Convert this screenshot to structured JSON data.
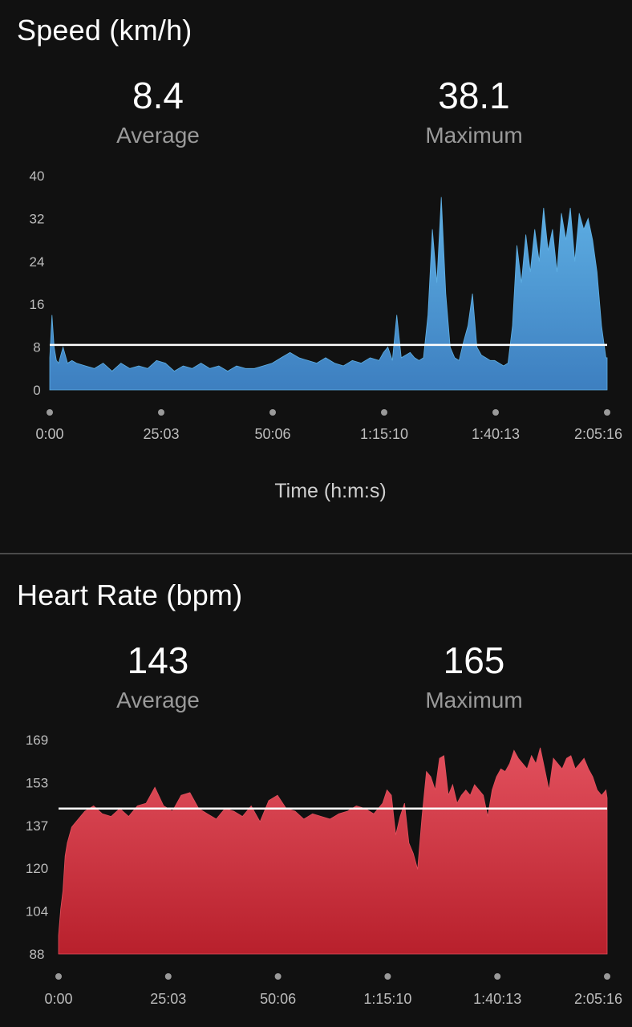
{
  "speed": {
    "title": "Speed (km/h)",
    "average_value": "8.4",
    "average_label": "Average",
    "maximum_value": "38.1",
    "maximum_label": "Maximum",
    "xlabel": "Time (h:m:s)"
  },
  "heart_rate": {
    "title": "Heart Rate (bpm)",
    "average_value": "143",
    "average_label": "Average",
    "maximum_value": "165",
    "maximum_label": "Maximum"
  },
  "chart_data": [
    {
      "type": "area",
      "title": "Speed (km/h)",
      "xlabel": "Time (h:m:s)",
      "ylabel": "",
      "x_unit": "minutes",
      "xlim": [
        0,
        125.27
      ],
      "ylim": [
        0,
        40
      ],
      "y_ticks": [
        "0",
        "8",
        "16",
        "24",
        "32",
        "40"
      ],
      "x_tick_labels": [
        "0:00",
        "25:03",
        "50:06",
        "1:15:10",
        "1:40:13",
        "2:05:16"
      ],
      "average_line": 8.4,
      "color": "#5aa7dc",
      "grid": false,
      "legend": "none",
      "x": [
        0,
        0.5,
        1,
        1.5,
        2,
        3,
        4,
        5,
        6,
        8,
        10,
        12,
        14,
        16,
        18,
        20,
        22,
        24,
        26,
        28,
        30,
        32,
        34,
        36,
        38,
        40,
        42,
        44,
        46,
        48,
        50,
        52,
        54,
        56,
        58,
        60,
        62,
        64,
        66,
        68,
        70,
        72,
        74,
        75,
        76,
        77,
        78,
        79,
        80,
        81,
        82,
        83,
        84,
        85,
        86,
        87,
        88,
        89,
        90,
        91,
        92,
        93,
        94,
        95,
        96,
        97,
        98,
        99,
        100,
        101,
        102,
        103,
        104,
        105,
        106,
        107,
        108,
        109,
        110,
        111,
        112,
        113,
        114,
        115,
        116,
        117,
        118,
        119,
        120,
        121,
        122,
        123,
        124,
        125,
        125.27
      ],
      "values": [
        6,
        14,
        8,
        5.5,
        5,
        8,
        5,
        5.5,
        5,
        4.5,
        4,
        5,
        3.5,
        5,
        4,
        4.5,
        4,
        5.5,
        5,
        3.5,
        4.5,
        4,
        5,
        4,
        4.5,
        3.5,
        4.5,
        4,
        4,
        4.5,
        5,
        6,
        7,
        6,
        5.5,
        5,
        6,
        5,
        4.5,
        5.5,
        5,
        6,
        5.5,
        7,
        8,
        5.5,
        14,
        6,
        6.5,
        7,
        6,
        5.5,
        6,
        14,
        30,
        20,
        36,
        18,
        8,
        6,
        5.5,
        9,
        12,
        18,
        8,
        6.5,
        6,
        5.5,
        5.5,
        5,
        4.5,
        5,
        12,
        27,
        20,
        29,
        22,
        30,
        24,
        34,
        26,
        30,
        22,
        33,
        28,
        34,
        24,
        33,
        30,
        32,
        28,
        22,
        12,
        6,
        6
      ]
    },
    {
      "type": "area",
      "title": "Heart Rate (bpm)",
      "xlabel": "",
      "ylabel": "",
      "x_unit": "minutes",
      "xlim": [
        0,
        125.27
      ],
      "ylim": [
        88,
        169
      ],
      "y_ticks": [
        "88",
        "104",
        "120",
        "137",
        "153",
        "169"
      ],
      "x_tick_labels": [
        "0:00",
        "25:03",
        "50:06",
        "1:15:10",
        "1:40:13",
        "2:05:16"
      ],
      "average_line": 143,
      "color": "#d83a48",
      "grid": false,
      "legend": "none",
      "x": [
        0,
        0.5,
        1,
        1.5,
        2,
        3,
        4,
        5,
        6,
        8,
        10,
        12,
        14,
        16,
        18,
        20,
        22,
        24,
        26,
        28,
        30,
        32,
        34,
        36,
        38,
        40,
        42,
        44,
        46,
        48,
        50,
        52,
        54,
        56,
        58,
        60,
        62,
        64,
        66,
        68,
        70,
        72,
        74,
        75,
        76,
        77,
        78,
        79,
        80,
        81,
        82,
        83,
        84,
        85,
        86,
        87,
        88,
        89,
        90,
        91,
        92,
        93,
        94,
        95,
        96,
        97,
        98,
        99,
        100,
        101,
        102,
        103,
        104,
        105,
        106,
        107,
        108,
        109,
        110,
        111,
        112,
        113,
        114,
        115,
        116,
        117,
        118,
        119,
        120,
        121,
        122,
        123,
        124,
        125,
        125.27
      ],
      "values": [
        95,
        105,
        112,
        125,
        130,
        136,
        138,
        140,
        142,
        144,
        141,
        140,
        143,
        140,
        144,
        145,
        151,
        144,
        142,
        148,
        149,
        143,
        141,
        139,
        143,
        142,
        140,
        144,
        138,
        146,
        148,
        143,
        142,
        139,
        141,
        140,
        139,
        141,
        142,
        144,
        143,
        141,
        145,
        150,
        148,
        133,
        140,
        145,
        130,
        126,
        120,
        140,
        157,
        155,
        150,
        162,
        163,
        148,
        152,
        145,
        148,
        150,
        148,
        152,
        150,
        148,
        140,
        150,
        155,
        158,
        157,
        160,
        165,
        162,
        160,
        158,
        163,
        160,
        166,
        158,
        150,
        162,
        160,
        158,
        162,
        163,
        158,
        160,
        162,
        158,
        155,
        150,
        148,
        150,
        147
      ]
    }
  ]
}
